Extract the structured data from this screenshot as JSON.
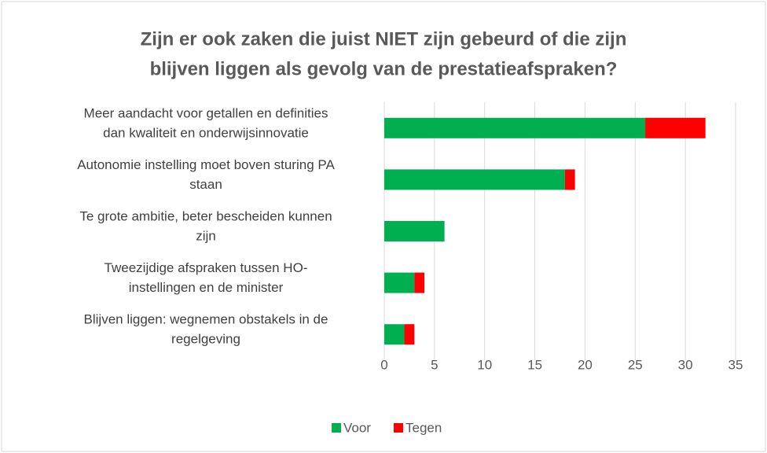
{
  "chart_data": {
    "type": "bar",
    "orientation": "horizontal",
    "stacked": true,
    "title": [
      "Zijn er ook zaken die juist NIET zijn gebeurd of die zijn",
      "blijven liggen als gevolg van de prestatieafspraken?"
    ],
    "categories": [
      [
        "Meer aandacht voor getallen en definities",
        "dan kwaliteit en onderwijsinnovatie"
      ],
      [
        "Autonomie instelling moet boven sturing PA",
        "staan"
      ],
      [
        "Te grote ambitie, beter bescheiden kunnen",
        "zijn"
      ],
      [
        "Tweezijdige afspraken tussen HO-",
        "instellingen en de minister"
      ],
      [
        "Blijven liggen: wegnemen obstakels in de",
        "regelgeving"
      ]
    ],
    "series": [
      {
        "name": "Voor",
        "color": "#00b050",
        "values": [
          26,
          18,
          6,
          3,
          2
        ]
      },
      {
        "name": "Tegen",
        "color": "#ff0000",
        "values": [
          6,
          1,
          0,
          1,
          1
        ]
      }
    ],
    "xlim": [
      0,
      35
    ],
    "xticks": [
      0,
      5,
      10,
      15,
      20,
      25,
      30,
      35
    ],
    "grid": true,
    "legend": "bottom"
  }
}
